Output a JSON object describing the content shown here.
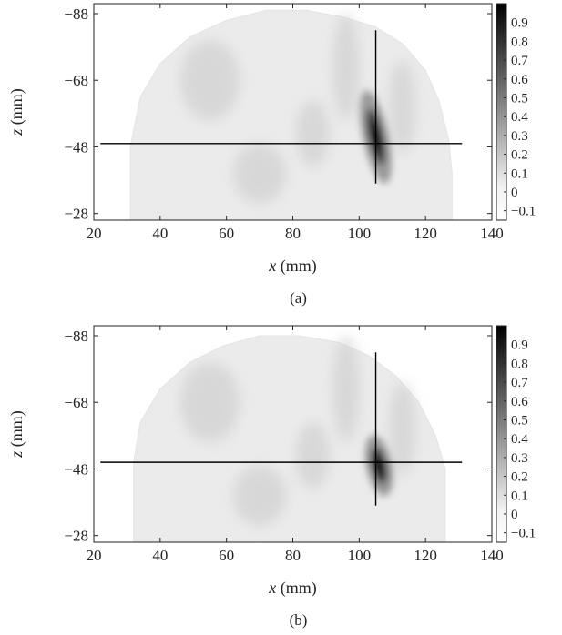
{
  "colors": {
    "axis": "#222222",
    "crosshair": "#000000",
    "colormap_low": "#ffffff",
    "colormap_high": "#000000",
    "background_tissue": "#ebebeb"
  },
  "chart_data": [
    {
      "type": "heatmap",
      "caption": "(a)",
      "xlabel_var": "x",
      "xlabel_unit": " (mm)",
      "ylabel_var": "z",
      "ylabel_unit": " (mm)",
      "xlim": [
        20,
        140
      ],
      "ylim": [
        -91,
        -26
      ],
      "y_axis_inverted": true,
      "xticks": [
        20,
        40,
        60,
        80,
        100,
        120,
        140
      ],
      "xtick_labels": [
        "20",
        "40",
        "60",
        "80",
        "100",
        "120",
        "140"
      ],
      "yticks": [
        -88,
        -68,
        -48,
        -28
      ],
      "ytick_labels": [
        "−88",
        "−68",
        "−48",
        "−28"
      ],
      "colorbar": {
        "range": [
          -0.15,
          1.0
        ],
        "ticks": [
          0.9,
          0.8,
          0.7,
          0.6,
          0.5,
          0.4,
          0.3,
          0.2,
          0.1,
          0,
          -0.1
        ],
        "tick_labels": [
          "0.9",
          "0.8",
          "0.7",
          "0.6",
          "0.5",
          "0.4",
          "0.3",
          "0.2",
          "0.1",
          "0",
          "−0.1"
        ],
        "colormap": "gray_reversed"
      },
      "crosshair": {
        "horizontal_z": -49,
        "horizontal_x_range": [
          22,
          131
        ],
        "vertical_x": 105,
        "vertical_z_range": [
          -83,
          -37
        ]
      },
      "hotspot": {
        "x": 105,
        "z": -51,
        "peak_value": 1.0
      },
      "grid": false
    },
    {
      "type": "heatmap",
      "caption": "(b)",
      "xlabel_var": "x",
      "xlabel_unit": " (mm)",
      "ylabel_var": "z",
      "ylabel_unit": " (mm)",
      "xlim": [
        20,
        140
      ],
      "ylim": [
        -91,
        -26
      ],
      "y_axis_inverted": true,
      "xticks": [
        20,
        40,
        60,
        80,
        100,
        120,
        140
      ],
      "xtick_labels": [
        "20",
        "40",
        "60",
        "80",
        "100",
        "120",
        "140"
      ],
      "yticks": [
        -88,
        -68,
        -48,
        -28
      ],
      "ytick_labels": [
        "−88",
        "−68",
        "−48",
        "−28"
      ],
      "colorbar": {
        "range": [
          -0.15,
          1.0
        ],
        "ticks": [
          0.9,
          0.8,
          0.7,
          0.6,
          0.5,
          0.4,
          0.3,
          0.2,
          0.1,
          0,
          -0.1
        ],
        "tick_labels": [
          "0.9",
          "0.8",
          "0.7",
          "0.6",
          "0.5",
          "0.4",
          "0.3",
          "0.2",
          "0.1",
          "0",
          "−0.1"
        ],
        "colormap": "gray_reversed"
      },
      "crosshair": {
        "horizontal_z": -50,
        "horizontal_x_range": [
          22,
          131
        ],
        "vertical_x": 105,
        "vertical_z_range": [
          -83,
          -37
        ]
      },
      "hotspot": {
        "x": 106,
        "z": -49,
        "peak_value": 1.0
      },
      "grid": false
    }
  ]
}
